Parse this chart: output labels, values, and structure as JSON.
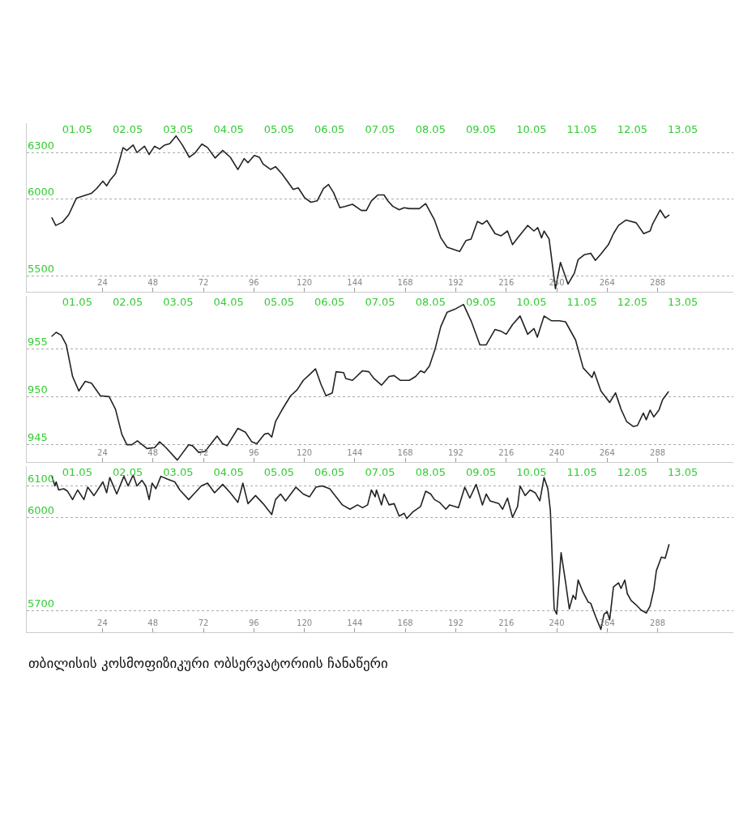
{
  "chart_data": [
    {
      "type": "line",
      "color": "#222222",
      "grid": "y",
      "x": [
        0,
        1.8,
        5,
        8,
        11.6,
        14.6,
        18.8,
        21.2,
        24.2,
        26,
        27.8,
        30.2,
        32,
        33.8,
        35.6,
        38.6,
        40.4,
        44,
        46.2,
        48.8,
        51.2,
        53.6,
        56,
        59,
        62,
        65.3,
        68,
        71.3,
        74,
        77.6,
        81.2,
        84.8,
        88.4,
        91.4,
        93.2,
        96.2,
        98.6,
        100.4,
        104,
        106.3,
        109.3,
        113,
        114.7,
        117.1,
        120.1,
        123.1,
        126.1,
        129.1,
        131.5,
        133.9,
        136.9,
        139.3,
        142.9,
        147.1,
        149.5,
        151.9,
        154.9,
        157.9,
        159.7,
        162.1,
        165.1,
        167.5,
        169.9,
        174.7,
        177.7,
        181.9,
        184.9,
        187.9,
        193.9,
        196.9,
        199.3,
        202.3,
        204.7,
        206.8,
        210.7,
        213.6,
        216.6,
        219,
        222,
        226.2,
        229.2,
        231,
        232.8,
        234,
        236.4,
        239.4,
        241.8,
        245.4,
        248.4,
        250.2,
        253.2,
        256.2,
        258.4,
        261,
        264.6,
        267,
        269.4,
        273,
        277.8,
        281.4,
        284.4,
        285.6,
        289.2,
        291.6,
        293.4
      ],
      "values": [
        5878,
        5829,
        5850,
        5899,
        6005,
        6018,
        6037,
        6067,
        6115,
        6085,
        6125,
        6164,
        6244,
        6332,
        6314,
        6349,
        6300,
        6341,
        6288,
        6341,
        6323,
        6349,
        6358,
        6408,
        6349,
        6270,
        6297,
        6355,
        6332,
        6265,
        6314,
        6270,
        6191,
        6261,
        6235,
        6282,
        6270,
        6226,
        6191,
        6209,
        6164,
        6094,
        6062,
        6072,
        6009,
        5979,
        5988,
        6067,
        6094,
        6041,
        5944,
        5952,
        5966,
        5926,
        5926,
        5988,
        6026,
        6026,
        5988,
        5952,
        5931,
        5944,
        5938,
        5938,
        5970,
        5864,
        5749,
        5688,
        5661,
        5732,
        5741,
        5855,
        5838,
        5861,
        5776,
        5762,
        5793,
        5705,
        5758,
        5829,
        5793,
        5815,
        5749,
        5793,
        5741,
        5420,
        5590,
        5450,
        5520,
        5608,
        5640,
        5649,
        5603,
        5644,
        5705,
        5776,
        5829,
        5864,
        5846,
        5776,
        5793,
        5838,
        5929,
        5878,
        5896
      ],
      "xlim": [
        -12,
        324
      ],
      "xticks": [
        24,
        48,
        72,
        96,
        120,
        144,
        168,
        192,
        216,
        240,
        264,
        288
      ],
      "x2lim": [
        "--04-30",
        "--05-14"
      ],
      "x2ticks": [
        {
          "value": "--05-01",
          "label": "01.05"
        },
        {
          "value": "--05-02",
          "label": "02.05"
        },
        {
          "value": "--05-03",
          "label": "03.05"
        },
        {
          "value": "--05-04",
          "label": "04.05"
        },
        {
          "value": "--05-05",
          "label": "05.05"
        },
        {
          "value": "--05-06",
          "label": "06.05"
        },
        {
          "value": "--05-07",
          "label": "07.05"
        },
        {
          "value": "--05-08",
          "label": "08.05"
        },
        {
          "value": "--05-09",
          "label": "09.05"
        },
        {
          "value": "--05-10",
          "label": "10.05"
        },
        {
          "value": "--05-11",
          "label": "11.05"
        },
        {
          "value": "--05-12",
          "label": "12.05"
        },
        {
          "value": "--05-13",
          "label": "13.05"
        }
      ],
      "ylim": [
        5400,
        6490
      ],
      "yticks": [
        5500,
        6000,
        6300
      ]
    },
    {
      "type": "line",
      "color": "#222222",
      "grid": "y",
      "x": [
        0,
        2,
        4.4,
        6.8,
        9.8,
        12.8,
        15.8,
        18.8,
        23,
        27.2,
        30.2,
        33.2,
        35.6,
        38,
        40.6,
        45.2,
        48.8,
        51.2,
        54.2,
        59.6,
        65,
        66.8,
        69.8,
        72.8,
        78.5,
        81.2,
        83.3,
        88.4,
        92,
        95,
        97.4,
        101,
        102.8,
        104.5,
        106.3,
        109.3,
        113.5,
        116.5,
        119.5,
        122.5,
        125.3,
        127.9,
        130.3,
        133.3,
        135.1,
        138.7,
        139.7,
        142.9,
        147.7,
        150.7,
        153.1,
        156.7,
        160.3,
        162.7,
        165.7,
        169.9,
        172.9,
        175.3,
        177.1,
        179.5,
        182.1,
        184.9,
        187.9,
        191.5,
        195.7,
        199.3,
        203.5,
        206.5,
        210.7,
        213.7,
        216,
        219,
        222.6,
        226.2,
        229.2,
        230.8,
        234,
        237.6,
        241.2,
        244.2,
        249,
        252.6,
        256.8,
        257.8,
        261,
        265.2,
        268,
        270.6,
        273.3,
        276.4,
        278.4,
        281.2,
        282.6,
        284.4,
        286.2,
        288.6,
        290.4,
        293.1
      ],
      "values": [
        956.3,
        956.7,
        956.4,
        955.4,
        952.1,
        950.6,
        951.6,
        951.4,
        950.1,
        950.0,
        948.7,
        946.1,
        945.0,
        945.0,
        945.4,
        944.6,
        944.7,
        945.3,
        944.7,
        943.4,
        945.0,
        944.9,
        944.2,
        944.3,
        945.9,
        945.1,
        944.9,
        946.7,
        946.3,
        945.3,
        945.1,
        946.1,
        946.2,
        945.8,
        947.4,
        948.6,
        950.1,
        950.7,
        951.7,
        952.3,
        952.9,
        951.3,
        950.1,
        950.4,
        952.6,
        952.5,
        951.9,
        951.7,
        952.7,
        952.6,
        951.9,
        951.2,
        952.1,
        952.2,
        951.7,
        951.7,
        952.1,
        952.7,
        952.5,
        953.2,
        954.9,
        957.3,
        958.8,
        959.1,
        959.6,
        957.9,
        955.4,
        955.4,
        957.0,
        956.8,
        956.5,
        957.5,
        958.4,
        956.5,
        957.1,
        956.2,
        958.4,
        957.9,
        957.9,
        957.8,
        955.9,
        953.0,
        952.0,
        952.6,
        950.6,
        949.4,
        950.4,
        948.7,
        947.4,
        946.9,
        947.0,
        948.3,
        947.6,
        948.6,
        947.9,
        948.6,
        949.7,
        950.5
      ],
      "xlim": [
        -12,
        324
      ],
      "xticks": [
        24,
        48,
        72,
        96,
        120,
        144,
        168,
        192,
        216,
        240,
        264,
        288
      ],
      "x2lim": [
        "--04-30",
        "--05-14"
      ],
      "x2ticks": [
        {
          "value": "--05-01",
          "label": "01.05"
        },
        {
          "value": "--05-02",
          "label": "02.05"
        },
        {
          "value": "--05-03",
          "label": "03.05"
        },
        {
          "value": "--05-04",
          "label": "04.05"
        },
        {
          "value": "--05-05",
          "label": "05.05"
        },
        {
          "value": "--05-06",
          "label": "06.05"
        },
        {
          "value": "--05-07",
          "label": "07.05"
        },
        {
          "value": "--05-08",
          "label": "08.05"
        },
        {
          "value": "--05-09",
          "label": "09.05"
        },
        {
          "value": "--05-10",
          "label": "10.05"
        },
        {
          "value": "--05-11",
          "label": "11.05"
        },
        {
          "value": "--05-12",
          "label": "12.05"
        },
        {
          "value": "--05-13",
          "label": "13.05"
        }
      ],
      "ylim": [
        943.2,
        960.5
      ],
      "yticks": [
        945,
        950,
        955
      ]
    },
    {
      "type": "line",
      "color": "#222222",
      "grid": "y",
      "x": [
        0,
        1.4,
        2,
        3.2,
        5.6,
        7.4,
        9.8,
        12.2,
        15.2,
        17,
        20,
        24.2,
        26,
        27.5,
        30.8,
        34.2,
        36.2,
        38.6,
        40.4,
        42.8,
        44.6,
        46.2,
        47.6,
        49.4,
        51.8,
        54.8,
        58.4,
        60.8,
        65,
        68,
        71,
        74,
        77.3,
        81.2,
        84.8,
        88.4,
        90.8,
        93.2,
        96.8,
        100.4,
        104.5,
        106.3,
        108.7,
        111.1,
        116,
        119.5,
        122.5,
        125.5,
        128.5,
        132.1,
        135.1,
        138.1,
        141.7,
        145.3,
        147.7,
        150.1,
        151.9,
        153.7,
        154.3,
        156.7,
        157.9,
        160.3,
        162.7,
        165.1,
        167.5,
        168.7,
        171.7,
        175.3,
        177.7,
        180.1,
        181.9,
        184.3,
        187.3,
        189.1,
        193.3,
        196.3,
        198.7,
        201.7,
        204.7,
        206.5,
        208.3,
        212.5,
        214.3,
        216.6,
        219,
        221.4,
        222.6,
        225,
        227.4,
        229.8,
        232,
        234,
        235.8,
        237,
        238.8,
        240,
        242.1,
        244.2,
        246,
        247.8,
        249,
        250.2,
        252.6,
        255,
        256.2,
        258.6,
        261,
        262.5,
        264,
        265.2,
        267,
        269.4,
        270.6,
        272.4,
        273.6,
        275.4,
        277.8,
        280.2,
        282.6,
        284.4,
        286.2,
        287.4,
        289.8,
        291.6,
        293.4
      ],
      "values": [
        6132,
        6101,
        6114,
        6088,
        6092,
        6084,
        6057,
        6088,
        6057,
        6097,
        6070,
        6114,
        6079,
        6128,
        6075,
        6132,
        6101,
        6136,
        6101,
        6119,
        6101,
        6057,
        6110,
        6092,
        6132,
        6123,
        6114,
        6088,
        6057,
        6079,
        6101,
        6110,
        6079,
        6106,
        6079,
        6048,
        6110,
        6044,
        6070,
        6044,
        6009,
        6057,
        6075,
        6053,
        6097,
        6075,
        6066,
        6097,
        6101,
        6092,
        6066,
        6040,
        6026,
        6040,
        6031,
        6040,
        6088,
        6066,
        6088,
        6040,
        6075,
        6040,
        6044,
        6004,
        6013,
        5996,
        6018,
        6035,
        6084,
        6075,
        6057,
        6048,
        6026,
        6040,
        6031,
        6097,
        6062,
        6106,
        6040,
        6075,
        6053,
        6044,
        6026,
        6062,
        6000,
        6035,
        6101,
        6070,
        6088,
        6079,
        6053,
        6128,
        6092,
        6022,
        5705,
        5688,
        5886,
        5793,
        5705,
        5749,
        5736,
        5798,
        5758,
        5727,
        5723,
        5679,
        5639,
        5688,
        5696,
        5670,
        5776,
        5789,
        5771,
        5798,
        5754,
        5732,
        5718,
        5701,
        5692,
        5714,
        5767,
        5828,
        5872,
        5868,
        5912
      ],
      "xlim": [
        -12,
        324
      ],
      "xticks": [
        24,
        48,
        72,
        96,
        120,
        144,
        168,
        192,
        216,
        240,
        264,
        288
      ],
      "x2lim": [
        "--04-30",
        "--05-14"
      ],
      "x2ticks": [
        {
          "value": "--05-01",
          "label": "01.05"
        },
        {
          "value": "--05-02",
          "label": "02.05"
        },
        {
          "value": "--05-03",
          "label": "03.05"
        },
        {
          "value": "--05-04",
          "label": "04.05"
        },
        {
          "value": "--05-05",
          "label": "05.05"
        },
        {
          "value": "--05-06",
          "label": "06.05"
        },
        {
          "value": "--05-07",
          "label": "07.05"
        },
        {
          "value": "--05-08",
          "label": "08.05"
        },
        {
          "value": "--05-09",
          "label": "09.05"
        },
        {
          "value": "--05-10",
          "label": "10.05"
        },
        {
          "value": "--05-11",
          "label": "11.05"
        },
        {
          "value": "--05-12",
          "label": "12.05"
        },
        {
          "value": "--05-13",
          "label": "13.05"
        }
      ],
      "ylim": [
        5630,
        6165
      ],
      "yticks": [
        5700,
        6000,
        6100
      ],
      "annotations": [
        "თბილისის კოსმოფიზიკური ობსერვატორიის ჩანაწერი"
      ]
    }
  ]
}
